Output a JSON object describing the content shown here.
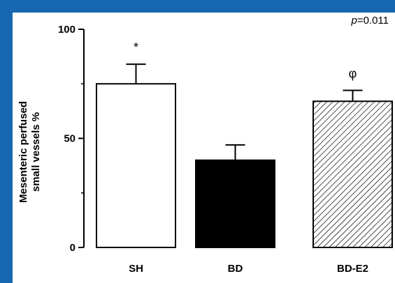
{
  "chart_data": {
    "type": "bar",
    "categories": [
      "SH",
      "BD",
      "BD-E2"
    ],
    "values": [
      75,
      40,
      67
    ],
    "errors": [
      9,
      7,
      5
    ],
    "fills": [
      "white",
      "black",
      "hatched"
    ],
    "annotations": [
      "*",
      "",
      "φ"
    ],
    "ylabel_line1": "Mesenteric perfused",
    "ylabel_line2": "small vessels %",
    "ylim": [
      0,
      100
    ],
    "yticks": [
      0,
      50,
      100
    ],
    "ytick_labels": [
      "0",
      "50",
      "100"
    ],
    "p_prefix": "p",
    "p_value": "=0.011",
    "grid": false,
    "legend": "none"
  },
  "colors": {
    "background": "#1667b0",
    "panel": "#ffffff",
    "ink": "#000000"
  }
}
